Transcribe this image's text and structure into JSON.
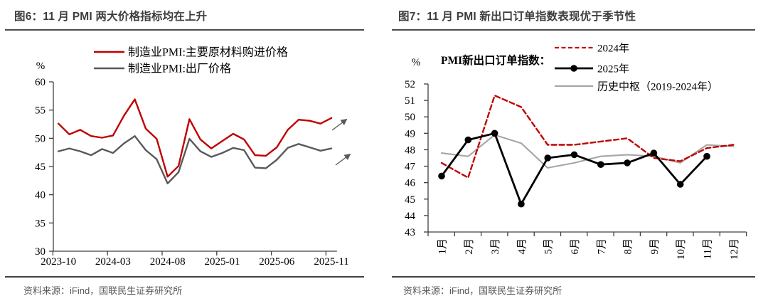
{
  "panels": [
    {
      "title": "图6：11 月 PMI 两大价格指标均在上升",
      "source": "资料来源：iFind，国联民生证券研究所"
    },
    {
      "title": "图7：11 月 PMI 新出口订单指数表现优于季节性",
      "source": "资料来源：iFind，国联民生证券研究所"
    }
  ],
  "colors": {
    "red": "#c00000",
    "dark_gray": "#595959",
    "light_gray": "#a6a6a6",
    "black": "#000000",
    "axis": "#404040"
  },
  "chart_data": [
    {
      "type": "line",
      "title": "11 月 PMI 两大价格指标均在上升",
      "unit_label": "%",
      "ylim": [
        30,
        60
      ],
      "yticks": [
        30,
        35,
        40,
        45,
        50,
        55,
        60
      ],
      "grid": false,
      "legend_position": "top",
      "x": [
        "2023-10",
        "2023-11",
        "2023-12",
        "2024-01",
        "2024-02",
        "2024-03",
        "2024-04",
        "2024-05",
        "2024-06",
        "2024-07",
        "2024-08",
        "2024-09",
        "2024-10",
        "2024-11",
        "2024-12",
        "2025-01",
        "2025-02",
        "2025-03",
        "2025-04",
        "2025-05",
        "2025-06",
        "2025-07",
        "2025-08",
        "2025-09",
        "2025-10",
        "2025-11"
      ],
      "x_tick_labels": [
        "2023-10",
        "2024-03",
        "2024-08",
        "2025-01",
        "2025-06",
        "2025-11"
      ],
      "series": [
        {
          "name": "制造业PMI:主要原材料购进价格",
          "color": "#c00000",
          "style": "solid",
          "values": [
            52.6,
            50.7,
            51.5,
            50.4,
            50.1,
            50.5,
            54.0,
            56.9,
            51.7,
            49.9,
            43.2,
            45.1,
            53.4,
            49.8,
            48.2,
            49.5,
            50.8,
            49.8,
            47.0,
            46.9,
            48.4,
            51.5,
            53.3,
            53.1,
            52.6,
            53.6
          ]
        },
        {
          "name": "制造业PMI:出厂价格",
          "color": "#595959",
          "style": "solid",
          "values": [
            47.7,
            48.2,
            47.7,
            47.0,
            48.1,
            47.4,
            49.1,
            50.4,
            47.9,
            46.3,
            42.0,
            44.0,
            49.9,
            47.7,
            46.7,
            47.4,
            48.3,
            47.9,
            44.8,
            44.7,
            46.2,
            48.3,
            49.0,
            48.4,
            47.8,
            48.2
          ]
        }
      ],
      "annotations": [
        {
          "type": "arrow-up-right",
          "at": "end of 制造业PMI:主要原材料购进价格"
        },
        {
          "type": "arrow-up-right",
          "at": "end of 制造业PMI:出厂价格"
        }
      ]
    },
    {
      "type": "line",
      "title": "11 月 PMI 新出口订单指数表现优于季节性",
      "unit_label": "%",
      "axis_title": "PMI新出口订单指数：",
      "ylim": [
        43,
        52
      ],
      "yticks": [
        43,
        44,
        45,
        46,
        47,
        48,
        49,
        50,
        51,
        52
      ],
      "grid": false,
      "legend_position": "top-right",
      "categories": [
        "1月",
        "2月",
        "3月",
        "4月",
        "5月",
        "6月",
        "7月",
        "8月",
        "9月",
        "10月",
        "11月",
        "12月"
      ],
      "series": [
        {
          "name": "2024年",
          "color": "#c00000",
          "style": "dashed",
          "values": [
            47.2,
            46.3,
            51.3,
            50.6,
            48.3,
            48.3,
            48.5,
            48.7,
            47.5,
            47.3,
            48.1,
            48.3
          ]
        },
        {
          "name": "2025年",
          "color": "#000000",
          "style": "solid",
          "marker": "circle",
          "values": [
            46.4,
            48.6,
            49.0,
            44.7,
            47.5,
            47.7,
            47.1,
            47.2,
            47.8,
            45.9,
            47.6
          ]
        },
        {
          "name": "历史中枢（2019-2024年）",
          "color": "#a6a6a6",
          "style": "solid",
          "values": [
            47.8,
            47.6,
            48.9,
            48.4,
            46.9,
            47.2,
            47.6,
            47.7,
            47.6,
            47.2,
            48.3,
            48.2
          ]
        }
      ]
    }
  ]
}
